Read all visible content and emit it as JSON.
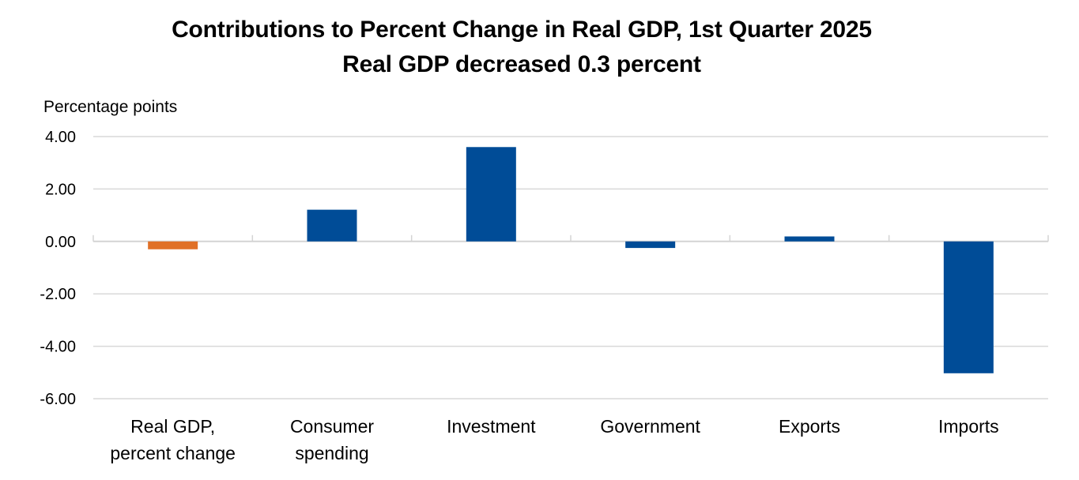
{
  "chart_data": {
    "type": "bar",
    "title": "Contributions to Percent Change in Real GDP, 1st Quarter 2025",
    "subtitle": "Real GDP decreased 0.3 percent",
    "ylabel": "Percentage points",
    "xlabel": "",
    "ylim": [
      -6,
      4
    ],
    "yticks": [
      4,
      2,
      0,
      -2,
      -4,
      -6
    ],
    "ytick_labels": [
      "4.00",
      "2.00",
      "0.00",
      "-2.00",
      "-4.00",
      "-6.00"
    ],
    "grid": true,
    "categories": [
      [
        "Real GDP,",
        "percent change"
      ],
      [
        "Consumer",
        "spending"
      ],
      [
        "Investment"
      ],
      [
        "Government"
      ],
      [
        "Exports"
      ],
      [
        "Imports"
      ]
    ],
    "values": [
      -0.3,
      1.21,
      3.6,
      -0.25,
      0.19,
      -5.03
    ],
    "colors": [
      "#E07027",
      "#004C97",
      "#004C97",
      "#004C97",
      "#004C97",
      "#004C97"
    ]
  }
}
